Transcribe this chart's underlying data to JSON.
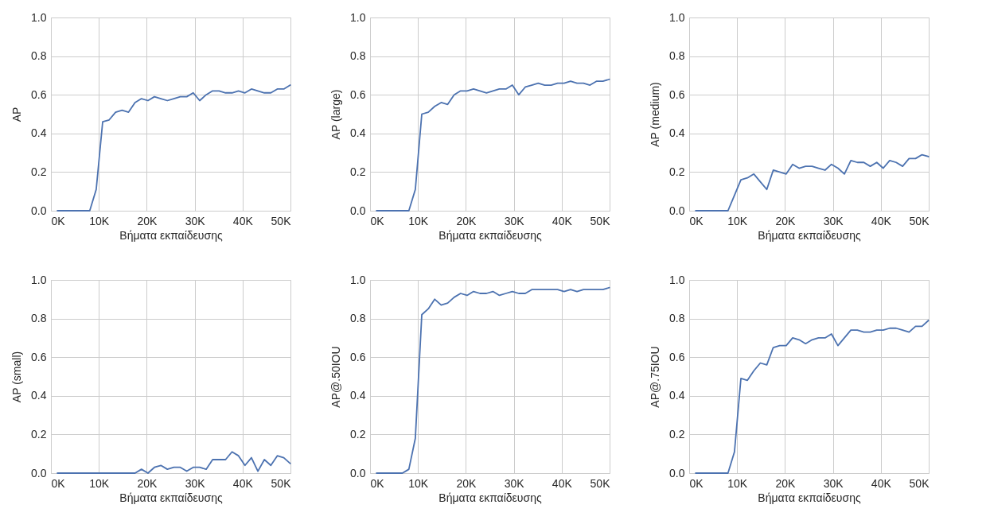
{
  "chart_data": [
    {
      "type": "line",
      "xlabel": "Βήματα εκπαίδευσης",
      "ylabel": "AP",
      "grid": true,
      "marker": "none",
      "line_style": "solid",
      "xlim": [
        0,
        50000
      ],
      "ylim": [
        0,
        1
      ],
      "xticks": [
        {
          "value": 0,
          "label": "0K"
        },
        {
          "value": 10000,
          "label": "10K"
        },
        {
          "value": 20000,
          "label": "20K"
        },
        {
          "value": 30000,
          "label": "30K"
        },
        {
          "value": 40000,
          "label": "40K"
        },
        {
          "value": 50000,
          "label": "50K"
        }
      ],
      "yticks": [
        {
          "value": 0,
          "label": "0.0"
        },
        {
          "value": 0.2,
          "label": "0.2"
        },
        {
          "value": 0.4,
          "label": "0.4"
        },
        {
          "value": 0.6,
          "label": "0.6"
        },
        {
          "value": 0.8,
          "label": "0.8"
        },
        {
          "value": 1,
          "label": "1.0"
        }
      ],
      "x": [
        1350,
        2700,
        4050,
        5400,
        6750,
        8100,
        9450,
        10800,
        12150,
        13500,
        14850,
        16200,
        17550,
        18900,
        20250,
        21600,
        22950,
        24300,
        25650,
        27000,
        28350,
        29700,
        31050,
        32400,
        33750,
        35100,
        36450,
        37800,
        39150,
        40500,
        41850,
        43200,
        44550,
        45900,
        47250,
        48600,
        49950
      ],
      "series": [
        {
          "color": "#4c72b0",
          "values": [
            0,
            0,
            0,
            0,
            0,
            0,
            0.11,
            0.46,
            0.47,
            0.51,
            0.52,
            0.51,
            0.56,
            0.58,
            0.57,
            0.59,
            0.58,
            0.57,
            0.58,
            0.59,
            0.59,
            0.61,
            0.57,
            0.6,
            0.62,
            0.62,
            0.61,
            0.61,
            0.62,
            0.61,
            0.63,
            0.62,
            0.61,
            0.61,
            0.63,
            0.63,
            0.65
          ]
        }
      ]
    },
    {
      "type": "line",
      "xlabel": "Βήματα εκπαίδευσης",
      "ylabel": "AP (large)",
      "grid": true,
      "marker": "none",
      "line_style": "solid",
      "xlim": [
        0,
        50000
      ],
      "ylim": [
        0,
        1
      ],
      "xticks": [
        {
          "value": 0,
          "label": "0K"
        },
        {
          "value": 10000,
          "label": "10K"
        },
        {
          "value": 20000,
          "label": "20K"
        },
        {
          "value": 30000,
          "label": "30K"
        },
        {
          "value": 40000,
          "label": "40K"
        },
        {
          "value": 50000,
          "label": "50K"
        }
      ],
      "yticks": [
        {
          "value": 0,
          "label": "0.0"
        },
        {
          "value": 0.2,
          "label": "0.2"
        },
        {
          "value": 0.4,
          "label": "0.4"
        },
        {
          "value": 0.6,
          "label": "0.6"
        },
        {
          "value": 0.8,
          "label": "0.8"
        },
        {
          "value": 1,
          "label": "1.0"
        }
      ],
      "x": [
        1350,
        2700,
        4050,
        5400,
        6750,
        8100,
        9450,
        10800,
        12150,
        13500,
        14850,
        16200,
        17550,
        18900,
        20250,
        21600,
        22950,
        24300,
        25650,
        27000,
        28350,
        29700,
        31050,
        32400,
        33750,
        35100,
        36450,
        37800,
        39150,
        40500,
        41850,
        43200,
        44550,
        45900,
        47250,
        48600,
        49950
      ],
      "series": [
        {
          "color": "#4c72b0",
          "values": [
            0,
            0,
            0,
            0,
            0,
            0,
            0.11,
            0.5,
            0.51,
            0.54,
            0.56,
            0.55,
            0.6,
            0.62,
            0.62,
            0.63,
            0.62,
            0.61,
            0.62,
            0.63,
            0.63,
            0.65,
            0.6,
            0.64,
            0.65,
            0.66,
            0.65,
            0.65,
            0.66,
            0.66,
            0.67,
            0.66,
            0.66,
            0.65,
            0.67,
            0.67,
            0.68
          ]
        }
      ]
    },
    {
      "type": "line",
      "xlabel": "Βήματα εκπαίδευσης",
      "ylabel": "AP (medium)",
      "grid": true,
      "marker": "none",
      "line_style": "solid",
      "xlim": [
        0,
        50000
      ],
      "ylim": [
        0,
        1
      ],
      "xticks": [
        {
          "value": 0,
          "label": "0K"
        },
        {
          "value": 10000,
          "label": "10K"
        },
        {
          "value": 20000,
          "label": "20K"
        },
        {
          "value": 30000,
          "label": "30K"
        },
        {
          "value": 40000,
          "label": "40K"
        },
        {
          "value": 50000,
          "label": "50K"
        }
      ],
      "yticks": [
        {
          "value": 0,
          "label": "0.0"
        },
        {
          "value": 0.2,
          "label": "0.2"
        },
        {
          "value": 0.4,
          "label": "0.4"
        },
        {
          "value": 0.6,
          "label": "0.6"
        },
        {
          "value": 0.8,
          "label": "0.8"
        },
        {
          "value": 1,
          "label": "1.0"
        }
      ],
      "x": [
        1350,
        2700,
        4050,
        5400,
        6750,
        8100,
        9450,
        10800,
        12150,
        13500,
        14850,
        16200,
        17550,
        18900,
        20250,
        21600,
        22950,
        24300,
        25650,
        27000,
        28350,
        29700,
        31050,
        32400,
        33750,
        35100,
        36450,
        37800,
        39150,
        40500,
        41850,
        43200,
        44550,
        45900,
        47250,
        48600,
        49950
      ],
      "series": [
        {
          "color": "#4c72b0",
          "values": [
            0,
            0,
            0,
            0,
            0,
            0,
            0.08,
            0.16,
            0.17,
            0.19,
            0.15,
            0.11,
            0.21,
            0.2,
            0.19,
            0.24,
            0.22,
            0.23,
            0.23,
            0.22,
            0.21,
            0.24,
            0.22,
            0.19,
            0.26,
            0.25,
            0.25,
            0.23,
            0.25,
            0.22,
            0.26,
            0.25,
            0.23,
            0.27,
            0.27,
            0.29,
            0.28
          ]
        }
      ]
    },
    {
      "type": "line",
      "xlabel": "Βήματα εκπαίδευσης",
      "ylabel": "AP (small)",
      "grid": true,
      "marker": "none",
      "line_style": "solid",
      "xlim": [
        0,
        50000
      ],
      "ylim": [
        0,
        1
      ],
      "xticks": [
        {
          "value": 0,
          "label": "0K"
        },
        {
          "value": 10000,
          "label": "10K"
        },
        {
          "value": 20000,
          "label": "20K"
        },
        {
          "value": 30000,
          "label": "30K"
        },
        {
          "value": 40000,
          "label": "40K"
        },
        {
          "value": 50000,
          "label": "50K"
        }
      ],
      "yticks": [
        {
          "value": 0,
          "label": "0.0"
        },
        {
          "value": 0.2,
          "label": "0.2"
        },
        {
          "value": 0.4,
          "label": "0.4"
        },
        {
          "value": 0.6,
          "label": "0.6"
        },
        {
          "value": 0.8,
          "label": "0.8"
        },
        {
          "value": 1,
          "label": "1.0"
        }
      ],
      "x": [
        1350,
        2700,
        4050,
        5400,
        6750,
        8100,
        9450,
        10800,
        12150,
        13500,
        14850,
        16200,
        17550,
        18900,
        20250,
        21600,
        22950,
        24300,
        25650,
        27000,
        28350,
        29700,
        31050,
        32400,
        33750,
        35100,
        36450,
        37800,
        39150,
        40500,
        41850,
        43200,
        44550,
        45900,
        47250,
        48600,
        49950
      ],
      "series": [
        {
          "color": "#4c72b0",
          "values": [
            0,
            0,
            0,
            0,
            0,
            0,
            0,
            0,
            0,
            0,
            0,
            0,
            0,
            0.02,
            0,
            0.03,
            0.04,
            0.02,
            0.03,
            0.03,
            0.01,
            0.03,
            0.03,
            0.02,
            0.07,
            0.07,
            0.07,
            0.11,
            0.09,
            0.04,
            0.08,
            0.01,
            0.07,
            0.04,
            0.09,
            0.08,
            0.05
          ]
        }
      ]
    },
    {
      "type": "line",
      "xlabel": "Βήματα εκπαίδευσης",
      "ylabel": "AP@.50IOU",
      "grid": true,
      "marker": "none",
      "line_style": "solid",
      "xlim": [
        0,
        50000
      ],
      "ylim": [
        0,
        1
      ],
      "xticks": [
        {
          "value": 0,
          "label": "0K"
        },
        {
          "value": 10000,
          "label": "10K"
        },
        {
          "value": 20000,
          "label": "20K"
        },
        {
          "value": 30000,
          "label": "30K"
        },
        {
          "value": 40000,
          "label": "40K"
        },
        {
          "value": 50000,
          "label": "50K"
        }
      ],
      "yticks": [
        {
          "value": 0,
          "label": "0.0"
        },
        {
          "value": 0.2,
          "label": "0.2"
        },
        {
          "value": 0.4,
          "label": "0.4"
        },
        {
          "value": 0.6,
          "label": "0.6"
        },
        {
          "value": 0.8,
          "label": "0.8"
        },
        {
          "value": 1,
          "label": "1.0"
        }
      ],
      "x": [
        1350,
        2700,
        4050,
        5400,
        6750,
        8100,
        9450,
        10800,
        12150,
        13500,
        14850,
        16200,
        17550,
        18900,
        20250,
        21600,
        22950,
        24300,
        25650,
        27000,
        28350,
        29700,
        31050,
        32400,
        33750,
        35100,
        36450,
        37800,
        39150,
        40500,
        41850,
        43200,
        44550,
        45900,
        47250,
        48600,
        49950
      ],
      "series": [
        {
          "color": "#4c72b0",
          "values": [
            0,
            0,
            0,
            0,
            0,
            0.02,
            0.18,
            0.82,
            0.85,
            0.9,
            0.87,
            0.88,
            0.91,
            0.93,
            0.92,
            0.94,
            0.93,
            0.93,
            0.94,
            0.92,
            0.93,
            0.94,
            0.93,
            0.93,
            0.95,
            0.95,
            0.95,
            0.95,
            0.95,
            0.94,
            0.95,
            0.94,
            0.95,
            0.95,
            0.95,
            0.95,
            0.96
          ]
        }
      ]
    },
    {
      "type": "line",
      "xlabel": "Βήματα εκπαίδευσης",
      "ylabel": "AP@.75IOU",
      "grid": true,
      "marker": "none",
      "line_style": "solid",
      "xlim": [
        0,
        50000
      ],
      "ylim": [
        0,
        1
      ],
      "xticks": [
        {
          "value": 0,
          "label": "0K"
        },
        {
          "value": 10000,
          "label": "10K"
        },
        {
          "value": 20000,
          "label": "20K"
        },
        {
          "value": 30000,
          "label": "30K"
        },
        {
          "value": 40000,
          "label": "40K"
        },
        {
          "value": 50000,
          "label": "50K"
        }
      ],
      "yticks": [
        {
          "value": 0,
          "label": "0.0"
        },
        {
          "value": 0.2,
          "label": "0.2"
        },
        {
          "value": 0.4,
          "label": "0.4"
        },
        {
          "value": 0.6,
          "label": "0.6"
        },
        {
          "value": 0.8,
          "label": "0.8"
        },
        {
          "value": 1,
          "label": "1.0"
        }
      ],
      "x": [
        1350,
        2700,
        4050,
        5400,
        6750,
        8100,
        9450,
        10800,
        12150,
        13500,
        14850,
        16200,
        17550,
        18900,
        20250,
        21600,
        22950,
        24300,
        25650,
        27000,
        28350,
        29700,
        31050,
        32400,
        33750,
        35100,
        36450,
        37800,
        39150,
        40500,
        41850,
        43200,
        44550,
        45900,
        47250,
        48600,
        49950
      ],
      "series": [
        {
          "color": "#4c72b0",
          "values": [
            0,
            0,
            0,
            0,
            0,
            0,
            0.11,
            0.49,
            0.48,
            0.53,
            0.57,
            0.56,
            0.65,
            0.66,
            0.66,
            0.7,
            0.69,
            0.67,
            0.69,
            0.7,
            0.7,
            0.72,
            0.66,
            0.7,
            0.74,
            0.74,
            0.73,
            0.73,
            0.74,
            0.74,
            0.75,
            0.75,
            0.74,
            0.73,
            0.76,
            0.76,
            0.79
          ]
        }
      ]
    }
  ]
}
